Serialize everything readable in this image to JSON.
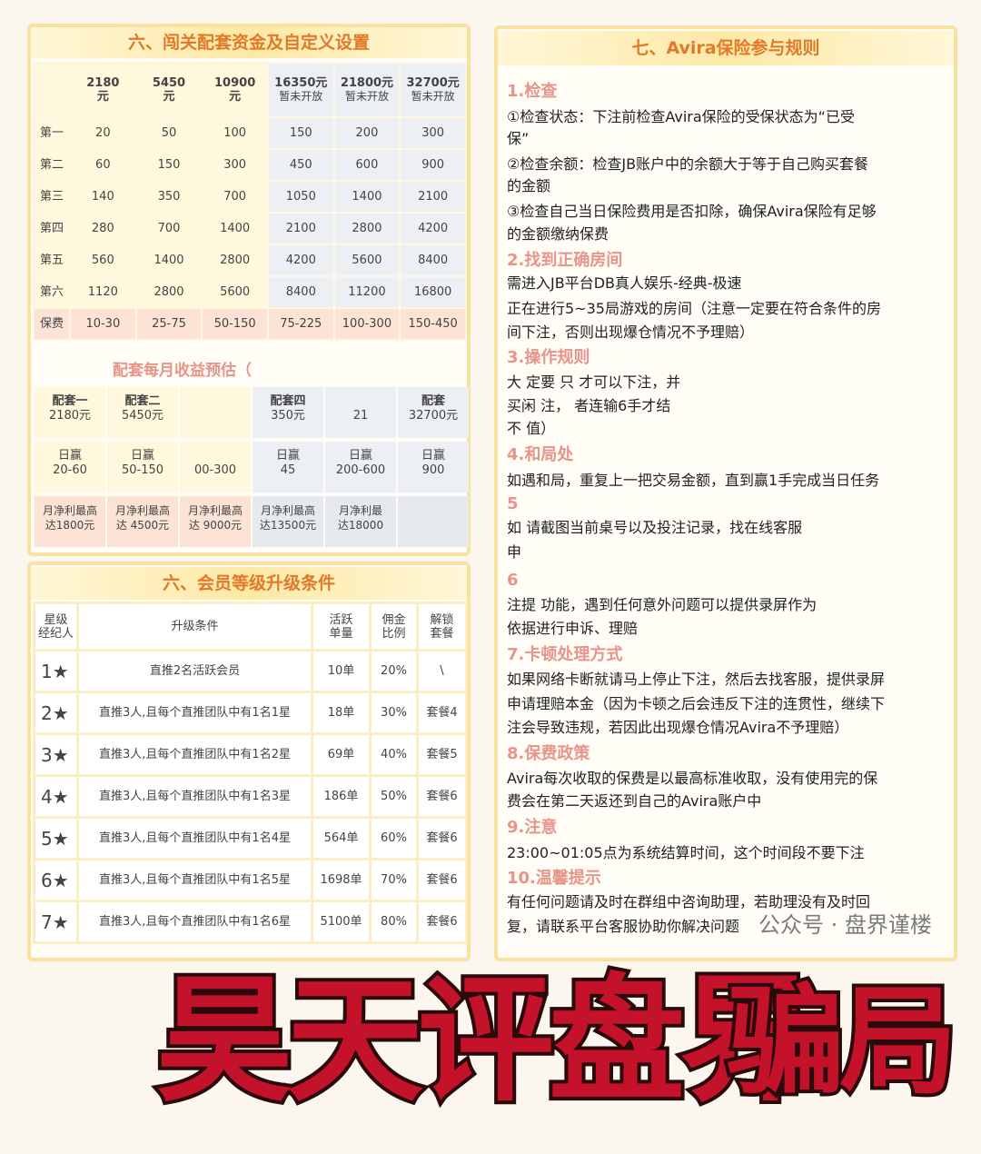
{
  "left_top": {
    "title": "六、闯关配套资金及自定义设置",
    "columns": [
      {
        "amount": "2180",
        "unit": "元",
        "note": ""
      },
      {
        "amount": "5450",
        "unit": "元",
        "note": ""
      },
      {
        "amount": "10900",
        "unit": "元",
        "note": ""
      },
      {
        "amount": "16350元",
        "unit": "",
        "note": "暂未开放"
      },
      {
        "amount": "21800元",
        "unit": "",
        "note": "暂未开放"
      },
      {
        "amount": "32700元",
        "unit": "",
        "note": "暂未开放"
      }
    ],
    "rows": [
      {
        "label": "第一",
        "values": [
          "20",
          "50",
          "100",
          "150",
          "200",
          "300"
        ]
      },
      {
        "label": "第二",
        "values": [
          "60",
          "150",
          "300",
          "450",
          "600",
          "900"
        ]
      },
      {
        "label": "第三",
        "values": [
          "140",
          "350",
          "700",
          "1050",
          "1400",
          "2100"
        ]
      },
      {
        "label": "第四",
        "values": [
          "280",
          "700",
          "1400",
          "2100",
          "2800",
          "4200"
        ]
      },
      {
        "label": "第五",
        "values": [
          "560",
          "1400",
          "2800",
          "4200",
          "5600",
          "8400"
        ]
      },
      {
        "label": "第六",
        "values": [
          "1120",
          "2800",
          "5600",
          "8400",
          "11200",
          "16800"
        ]
      },
      {
        "label": "保费",
        "values": [
          "10-30",
          "25-75",
          "50-150",
          "75-225",
          "100-300",
          "150-450"
        ]
      }
    ],
    "subtitle": "配套每月收益预估（",
    "packages": [
      {
        "name": "配套一",
        "price": "2180元",
        "daily_label": "日赢",
        "daily": "20-60",
        "monthly_label": "月净利最高",
        "monthly": "达1800元"
      },
      {
        "name": "配套二",
        "price": "5450元",
        "daily_label": "日赢",
        "daily": "50-150",
        "monthly_label": "月净利最高",
        "monthly": "达 4500元"
      },
      {
        "name": "",
        "price": "",
        "daily_label": "",
        "daily": "00-300",
        "monthly_label": "月净利最高",
        "monthly": "达 9000元"
      },
      {
        "name": "配套四",
        "price": "350元",
        "daily_label": "日赢",
        "daily": "45",
        "monthly_label": "月净利最高",
        "monthly": "达13500元"
      },
      {
        "name": "",
        "price": "21",
        "daily_label": "日赢",
        "daily": "200-600",
        "monthly_label": "月净利最",
        "monthly": "达18000"
      },
      {
        "name": "配套",
        "price": "32700元",
        "daily_label": "日赢",
        "daily": "900",
        "monthly_label": "",
        "monthly": ""
      }
    ]
  },
  "left_bottom": {
    "title": "六、会员等级升级条件",
    "headers": [
      "星级\n经纪人",
      "升级条件",
      "活跃\n单量",
      "佣金\n比例",
      "解锁\n套餐"
    ],
    "rows": [
      [
        "1★",
        "直推2名活跃会员",
        "10单",
        "20%",
        "\\"
      ],
      [
        "2★",
        "直推3人,且每个直推团队中有1名1星",
        "18单",
        "30%",
        "套餐4"
      ],
      [
        "3★",
        "直推3人,且每个直推团队中有1名2星",
        "69单",
        "40%",
        "套餐5"
      ],
      [
        "4★",
        "直推3人,且每个直推团队中有1名3星",
        "186单",
        "50%",
        "套餐6"
      ],
      [
        "5★",
        "直推3人,且每个直推团队中有1名4星",
        "564单",
        "60%",
        "套餐6"
      ],
      [
        "6★",
        "直推3人,且每个直推团队中有1名5星",
        "1698单",
        "70%",
        "套餐6"
      ],
      [
        "7★",
        "直推3人,且每个直推团队中有1名6星",
        "5100单",
        "80%",
        "套餐6"
      ]
    ]
  },
  "right": {
    "title": "七、Avira保险参与规则",
    "lines": [
      {
        "t": "1.检查",
        "h": true
      },
      {
        "t": "①检查状态：下注前检查Avira保险的受保状态为“已受"
      },
      {
        "t": "保”"
      },
      {
        "t": "②检查余额：检查JB账户中的余额大于等于自己购买套餐"
      },
      {
        "t": "的金额"
      },
      {
        "t": "③检查自己当日保险费用是否扣除，确保Avira保险有足够"
      },
      {
        "t": "的金额缴纳保费"
      },
      {
        "t": "2.找到正确房间",
        "h": true
      },
      {
        "t": "需进入JB平台DB真人娱乐-经典-极速"
      },
      {
        "t": "正在进行5~35局游戏的房间（注意一定要在符合条件的房"
      },
      {
        "t": "间下注，否则出现爆仓情况不予理赔）"
      },
      {
        "t": "3.操作规则",
        "h": true
      },
      {
        "t": "大   定要          只              才可以下注，并"
      },
      {
        "t": "   买闲       注，          者连输6手才结"
      },
      {
        "t": "     不    值）"
      },
      {
        "t": "4.和局处",
        "h": true
      },
      {
        "t": "如遇和局，重复上一把交易金额，直到赢1手完成当日任务"
      },
      {
        "t": "5",
        "h": true
      },
      {
        "t": "如          请截图当前桌号以及投注记录，找在线客服"
      },
      {
        "t": "申"
      },
      {
        "t": "6",
        "h": true
      },
      {
        "t": "注提            功能，遇到任何意外问题可以提供录屏作为"
      },
      {
        "t": "依据进行申诉、理赔"
      },
      {
        "t": "7.卡顿处理方式",
        "h": true
      },
      {
        "t": "如果网络卡断就请马上停止下注，然后去找客服，提供录屏"
      },
      {
        "t": "申请理赔本金（因为卡顿之后会违反下注的连贯性，继续下"
      },
      {
        "t": "注会导致违规，若因此出现爆仓情况Avira不予理赔）"
      },
      {
        "t": "8.保费政策",
        "h": true
      },
      {
        "t": "Avira每次收取的保费是以最高标准收取，没有使用完的保"
      },
      {
        "t": "费会在第二天返还到自己的Avira账户中"
      },
      {
        "t": "9.注意",
        "h": true
      },
      {
        "t": "23:00~01:05点为系统结算时间，这个时间段不要下注"
      },
      {
        "t": "10.温馨提示",
        "h": true
      },
      {
        "t": "有任何问题请及时在群组中咨询助理，若助理没有及时回"
      },
      {
        "t": "复，请联系平台客服协助你解决问题"
      }
    ]
  },
  "overlay": {
    "line1": "昊天评盘界",
    "line2": "骗局",
    "color": "#c4122a"
  },
  "watermark": "公众号 · 盘界谨楼"
}
